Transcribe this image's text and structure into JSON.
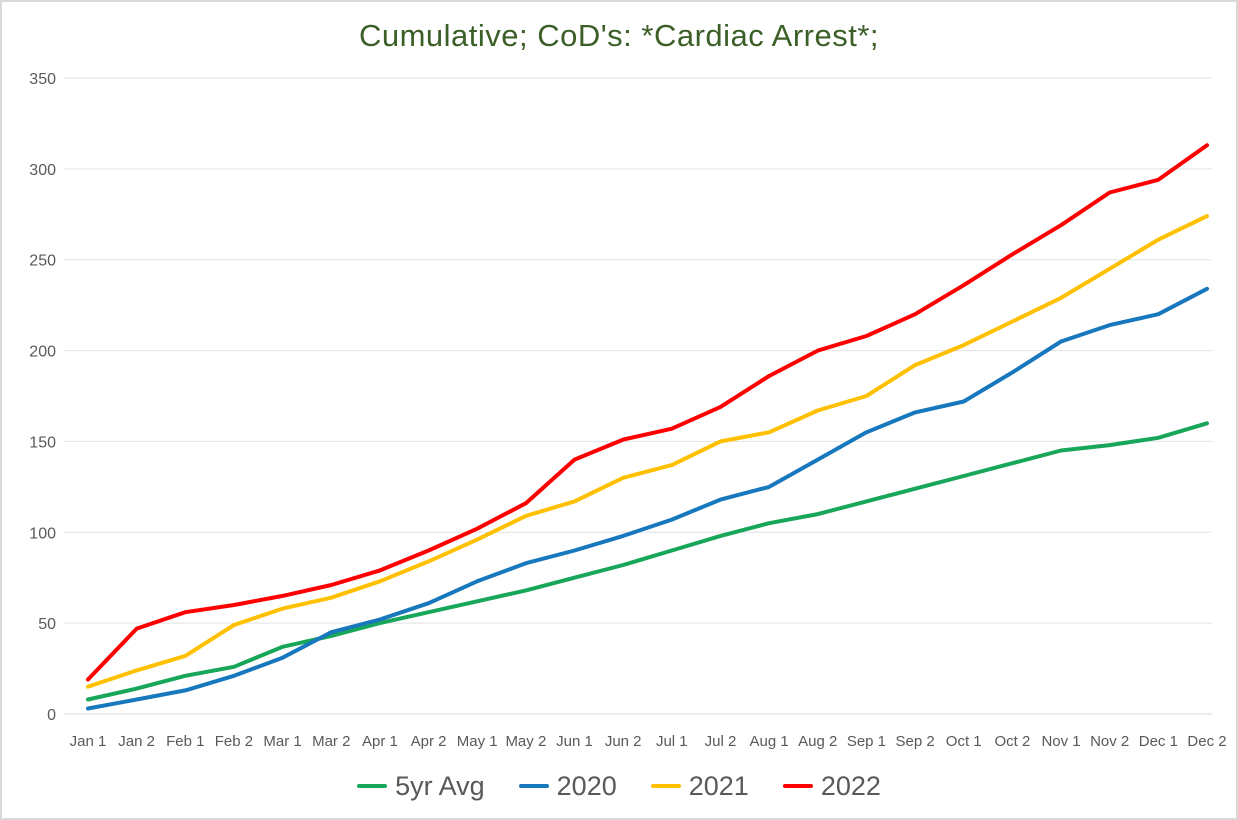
{
  "style": {
    "title_color": "#3c5f28",
    "axis_text_color": "#595959",
    "gridline_color": "#e2e2e2",
    "baseline_color": "#d9d9d9",
    "background": "#ffffff",
    "border_color": "#d9d9d9"
  },
  "chart_data": {
    "type": "line",
    "title": "Cumulative; CoD's: *Cardiac Arrest*;",
    "xlabel": "",
    "ylabel": "",
    "ylim": [
      0,
      350
    ],
    "ytick_step": 50,
    "grid": "horizontal-only",
    "legend_position": "bottom",
    "categories": [
      "Jan 1",
      "Jan 2",
      "Feb 1",
      "Feb 2",
      "Mar 1",
      "Mar 2",
      "Apr 1",
      "Apr 2",
      "May 1",
      "May 2",
      "Jun 1",
      "Jun 2",
      "Jul 1",
      "Jul 2",
      "Aug 1",
      "Aug 2",
      "Sep 1",
      "Sep 2",
      "Oct 1",
      "Oct 2",
      "Nov 1",
      "Nov 2",
      "Dec 1",
      "Dec 2"
    ],
    "series": [
      {
        "name": "5yr Avg",
        "color": "#17a65a",
        "values": [
          8,
          14,
          21,
          26,
          37,
          43,
          50,
          56,
          62,
          68,
          75,
          82,
          90,
          98,
          105,
          110,
          117,
          124,
          131,
          138,
          145,
          148,
          152,
          160
        ]
      },
      {
        "name": "2020",
        "color": "#1878be",
        "values": [
          3,
          8,
          13,
          21,
          31,
          45,
          52,
          61,
          73,
          83,
          90,
          98,
          107,
          118,
          125,
          140,
          155,
          166,
          172,
          188,
          205,
          214,
          220,
          234
        ]
      },
      {
        "name": "2021",
        "color": "#ffc000",
        "values": [
          15,
          24,
          32,
          49,
          58,
          64,
          73,
          84,
          96,
          109,
          117,
          130,
          137,
          150,
          155,
          167,
          175,
          192,
          203,
          216,
          229,
          245,
          261,
          274
        ]
      },
      {
        "name": "2022",
        "color": "#ff0000",
        "values": [
          19,
          47,
          56,
          60,
          65,
          71,
          79,
          90,
          102,
          116,
          140,
          151,
          157,
          169,
          186,
          200,
          208,
          220,
          236,
          253,
          269,
          287,
          294,
          313
        ]
      }
    ]
  }
}
